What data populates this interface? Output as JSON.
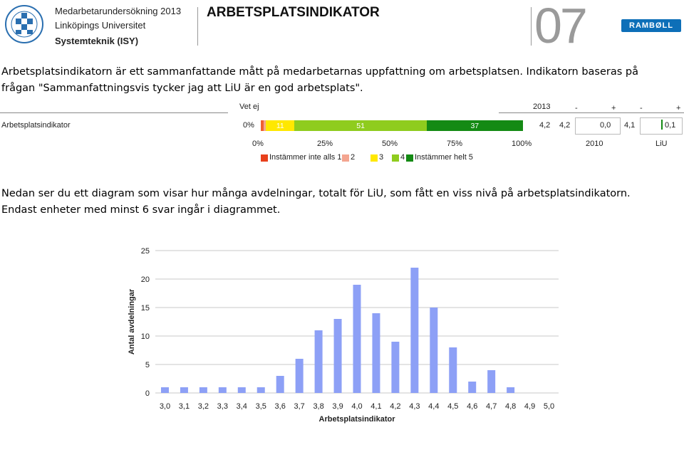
{
  "header": {
    "line1": "Medarbetarundersökning 2013",
    "line2": "Linköpings Universitet",
    "line3": "Systemteknik (ISY)",
    "title": "ARBETSPLATSINDIKATOR",
    "page_number": "07",
    "brand": "RAMBØLL"
  },
  "intro": {
    "line1": "Arbetsplatsindikatorn är ett sammanfattande mått på medarbetarnas uppfattning om arbetsplatsen. Indikatorn baseras på",
    "line2": "frågan \"Sammanfattningsvis tycker jag att LiU är en god arbetsplats\"."
  },
  "indicator": {
    "row_label": "Arbetsplatsindikator",
    "vet_ej_header": "Vet ej",
    "vet_ej_value": "0%",
    "year_header": "2013",
    "minus1": "-",
    "plus1": "+",
    "minus2": "-",
    "plus2": "+",
    "value_2013": "4,2",
    "value_2010": "4,2",
    "diff_2010": "0,0",
    "value_liu": "4,1",
    "diff_liu": "0,1",
    "col_2010": "2010",
    "col_liu": "LiU",
    "axis_ticks": [
      "0%",
      "25%",
      "50%",
      "75%",
      "100%"
    ],
    "segments": [
      {
        "label": "",
        "percent": 1,
        "color": "#f06030"
      },
      {
        "label": "",
        "percent": 1,
        "color": "#f4a590"
      },
      {
        "label": "11",
        "percent": 11,
        "color": "#ffe800"
      },
      {
        "label": "51",
        "percent": 51,
        "color": "#8fcc1e"
      },
      {
        "label": "37",
        "percent": 37,
        "color": "#148a14"
      }
    ],
    "legend": [
      {
        "label": "Instämmer inte alls 1",
        "color": "#e8401c"
      },
      {
        "label": "2",
        "color": "#f4a590"
      },
      {
        "label": "3",
        "color": "#ffe800"
      },
      {
        "label": "4",
        "color": "#8fcc1e"
      },
      {
        "label": "Instämmer helt 5",
        "color": "#148a14"
      }
    ]
  },
  "middle_text": {
    "line1": "Nedan ser du ett diagram som visar hur många avdelningar, totalt för LiU, som fått en viss nivå på arbetsplatsindikatorn.",
    "line2": "Endast enheter med minst 6 svar ingår i diagrammet."
  },
  "chart_data": {
    "type": "bar",
    "categories": [
      "3,0",
      "3,1",
      "3,2",
      "3,3",
      "3,4",
      "3,5",
      "3,6",
      "3,7",
      "3,8",
      "3,9",
      "4,0",
      "4,1",
      "4,2",
      "4,3",
      "4,4",
      "4,5",
      "4,6",
      "4,7",
      "4,8",
      "4,9",
      "5,0"
    ],
    "values": [
      1,
      1,
      1,
      1,
      1,
      1,
      3,
      6,
      11,
      13,
      19,
      14,
      9,
      22,
      15,
      8,
      2,
      4,
      1,
      0,
      0
    ],
    "xlabel": "Arbetsplatsindikator",
    "ylabel": "Antal avdelningar",
    "ylim": [
      0,
      25
    ],
    "yticks": [
      0,
      5,
      10,
      15,
      20,
      25
    ],
    "bar_color": "#8da0f6"
  }
}
